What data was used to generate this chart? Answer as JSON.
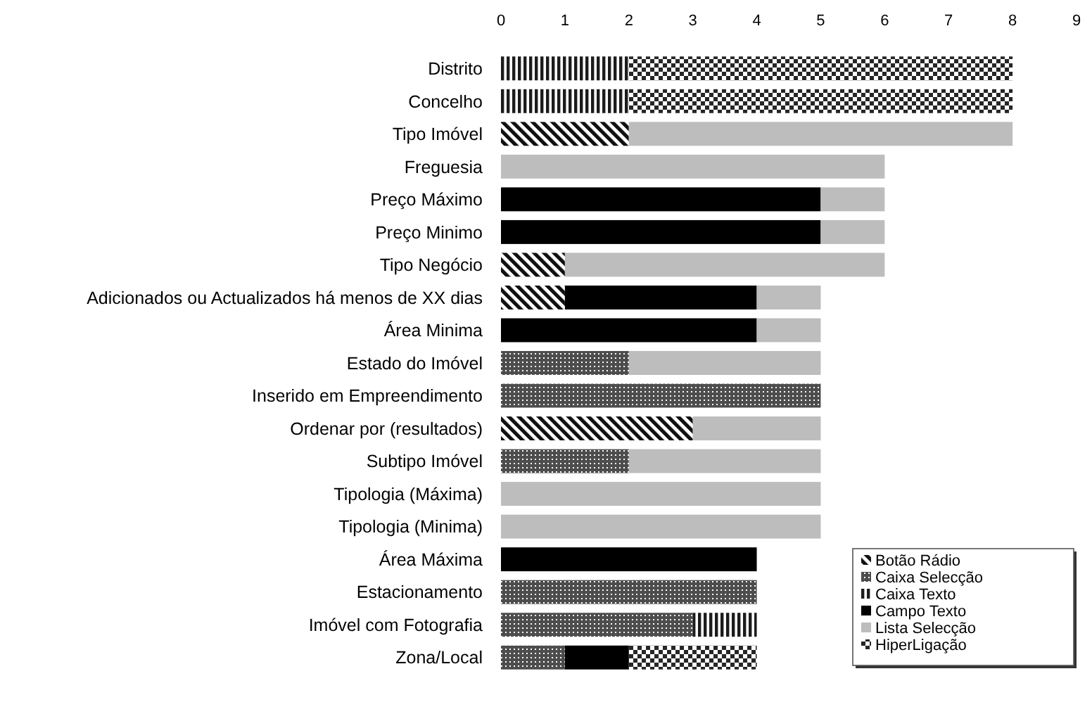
{
  "chart_data": {
    "type": "bar",
    "orientation": "horizontal",
    "stacked": true,
    "categories": [
      "Distrito",
      "Concelho",
      "Tipo Imóvel",
      "Freguesia",
      "Preço Máximo",
      "Preço Minimo",
      "Tipo Negócio",
      "Adicionados ou Actualizados há menos de XX dias",
      "Área Minima",
      "Estado do Imóvel",
      "Inserido em Empreendimento",
      "Ordenar por (resultados)",
      "Subtipo Imóvel",
      "Tipologia (Máxima)",
      "Tipologia (Minima)",
      "Área Máxima",
      "Estacionamento",
      "Imóvel com Fotografia",
      "Zona/Local"
    ],
    "series": [
      {
        "name": "Botão Rádio",
        "color": "#101010",
        "values": [
          null,
          null,
          2,
          null,
          null,
          null,
          1,
          1,
          null,
          null,
          null,
          3,
          null,
          null,
          null,
          null,
          null,
          null,
          null
        ]
      },
      {
        "name": "Caixa Selecção",
        "color": "#4d4d4d",
        "values": [
          null,
          null,
          null,
          null,
          null,
          null,
          null,
          null,
          null,
          2,
          5,
          null,
          2,
          null,
          null,
          null,
          4,
          3,
          1
        ]
      },
      {
        "name": "Caixa Texto",
        "color": "#1c1c1c",
        "values": [
          2,
          2,
          null,
          null,
          null,
          null,
          null,
          null,
          null,
          null,
          null,
          null,
          null,
          null,
          null,
          null,
          null,
          1,
          null
        ]
      },
      {
        "name": "Campo Texto",
        "color": "#000000",
        "values": [
          null,
          null,
          null,
          null,
          5,
          5,
          null,
          3,
          4,
          null,
          null,
          null,
          null,
          null,
          null,
          4,
          null,
          null,
          1
        ]
      },
      {
        "name": "Lista Selecção",
        "color": "#bdbdbd",
        "values": [
          null,
          null,
          6,
          6,
          1,
          1,
          5,
          1,
          1,
          3,
          null,
          2,
          3,
          5,
          5,
          null,
          null,
          null,
          null
        ]
      },
      {
        "name": "HiperLigação",
        "color": "#262626",
        "values": [
          6,
          6,
          null,
          null,
          null,
          null,
          null,
          null,
          null,
          null,
          null,
          null,
          null,
          null,
          null,
          null,
          null,
          null,
          2
        ]
      }
    ],
    "xlim": [
      0,
      9
    ],
    "xticks": [
      0,
      1,
      2,
      3,
      4,
      5,
      6,
      7,
      8,
      9
    ],
    "legend": "bottom right"
  }
}
